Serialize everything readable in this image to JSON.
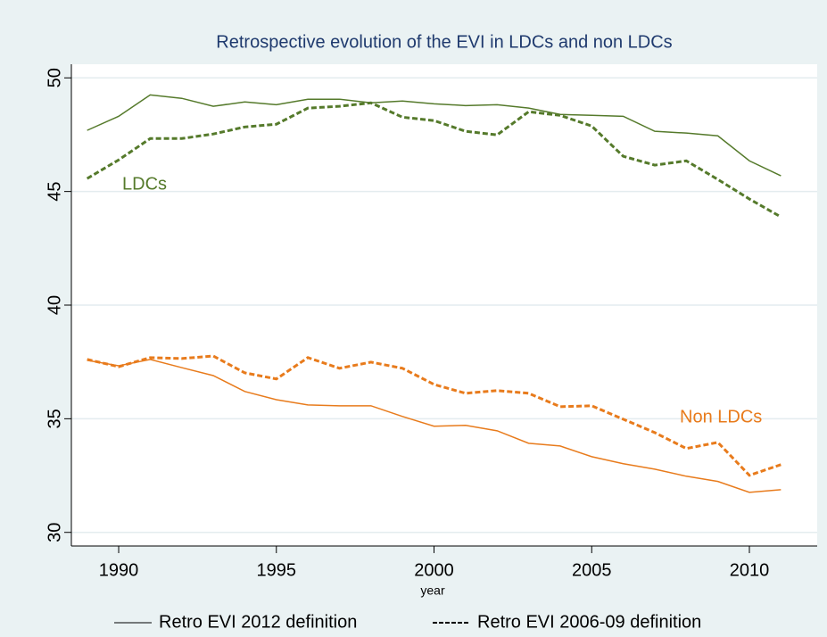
{
  "chart_data": {
    "type": "line",
    "title": "Retrospective evolution of the EVI in LDCs and non LDCs",
    "x_label": "year",
    "x": [
      1989,
      1990,
      1991,
      1992,
      1993,
      1994,
      1995,
      1996,
      1997,
      1998,
      1999,
      2000,
      2001,
      2002,
      2003,
      2004,
      2005,
      2006,
      2007,
      2008,
      2009,
      2010,
      2011
    ],
    "series": [
      {
        "color": "#557a2b",
        "style": "solid",
        "values": [
          47.69,
          48.31,
          49.25,
          49.1,
          48.75,
          48.94,
          48.82,
          49.06,
          49.06,
          48.9,
          48.98,
          48.86,
          48.78,
          48.82,
          48.67,
          48.39,
          48.35,
          48.31,
          47.65,
          47.57,
          47.45,
          46.35,
          45.69
        ]
      },
      {
        "color": "#557a2b",
        "style": "dashed",
        "values": [
          45.57,
          46.39,
          47.33,
          47.33,
          47.53,
          47.84,
          47.96,
          48.67,
          48.75,
          48.9,
          48.27,
          48.12,
          47.65,
          47.49,
          48.51,
          48.35,
          47.88,
          46.55,
          46.16,
          46.35,
          45.53,
          44.67,
          43.88
        ]
      },
      {
        "color": "#e87b1c",
        "style": "solid",
        "values": [
          37.57,
          37.33,
          37.61,
          37.25,
          36.9,
          36.2,
          35.84,
          35.61,
          35.57,
          35.57,
          35.1,
          34.67,
          34.71,
          34.47,
          33.92,
          33.8,
          33.33,
          33.02,
          32.78,
          32.47,
          32.24,
          31.76,
          31.88
        ]
      },
      {
        "color": "#e87b1c",
        "style": "dashed",
        "values": [
          37.61,
          37.29,
          37.69,
          37.65,
          37.76,
          37.02,
          36.75,
          37.69,
          37.22,
          37.49,
          37.22,
          36.51,
          36.12,
          36.24,
          36.12,
          35.53,
          35.57,
          34.98,
          34.39,
          33.69,
          33.96,
          32.51,
          32.98
        ]
      }
    ],
    "annotations": [
      {
        "text": "LDCs",
        "color": "#557a2b"
      },
      {
        "text": "Non LDCs",
        "color": "#e87b1c"
      }
    ],
    "legend": [
      {
        "label": "Retro EVI 2012 definition",
        "style": "solid"
      },
      {
        "label": "Retro EVI 2006-09 definition",
        "style": "dashed"
      }
    ],
    "xlim": [
      1988.5,
      2012.15
    ],
    "xticks": [
      1990,
      1995,
      2000,
      2005,
      2010
    ],
    "ylim": [
      29.4,
      50.6
    ],
    "yticks": [
      30,
      35,
      40,
      45,
      50
    ],
    "grid": true
  }
}
